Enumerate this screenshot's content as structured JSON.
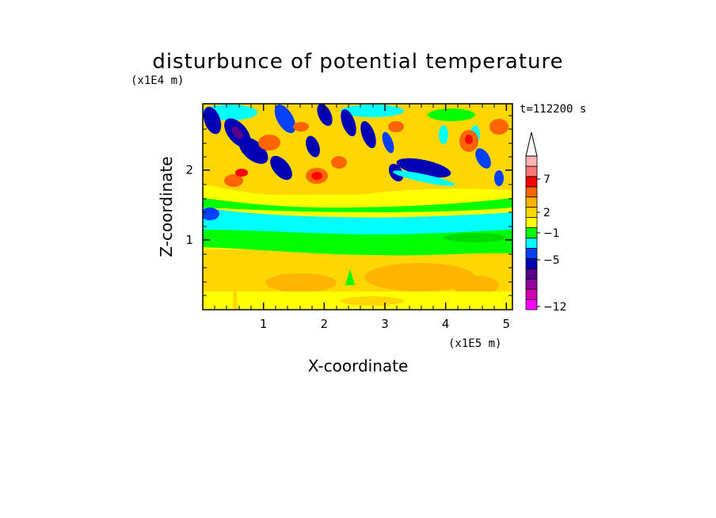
{
  "chart_data": {
    "type": "heatmap",
    "title": "disturbunce of potential temperature",
    "xlabel": "X-coordinate",
    "ylabel": "Z-coordinate",
    "x_scale_label": "(x1E5 m)",
    "y_scale_label": "(x1E4 m)",
    "time_label": "t=112200 s",
    "x_ticks": [
      "1",
      "2",
      "3",
      "4",
      "5"
    ],
    "y_ticks": [
      "1",
      "2"
    ],
    "xlim": [
      0,
      5.1
    ],
    "ylim": [
      0,
      2.95
    ],
    "colorbar": {
      "labels": [
        "7",
        "2",
        "−1",
        "−5",
        "−12"
      ],
      "colors": [
        "#ff00ff",
        "#d400b4",
        "#9400a0",
        "#5a008c",
        "#0000b4",
        "#0040ff",
        "#00ffff",
        "#00ff00",
        "#ffff00",
        "#ffd700",
        "#ffb400",
        "#ff6400",
        "#ff0000",
        "#ff7878",
        "#ffb4b4"
      ],
      "extend_top": "arrow"
    },
    "layers": [
      {
        "z_range": [
          0,
          0.3
        ],
        "dominant": "#ffff00",
        "features": "yellow with orange patches"
      },
      {
        "z_range": [
          0.3,
          0.9
        ],
        "dominant": "#ffd700",
        "features": "orange band"
      },
      {
        "z_range": [
          0.9,
          1.25
        ],
        "dominant": "#00ff00",
        "features": "green band"
      },
      {
        "z_range": [
          1.2,
          1.5
        ],
        "dominant": "#00ffff",
        "features": "cyan band"
      },
      {
        "z_range": [
          1.5,
          1.9
        ],
        "dominant": "#ffff00",
        "features": "yellow with green patches"
      },
      {
        "z_range": [
          1.9,
          2.95
        ],
        "dominant": "#ff6400",
        "features": "wave pattern with red, blue and purple cells"
      }
    ]
  }
}
